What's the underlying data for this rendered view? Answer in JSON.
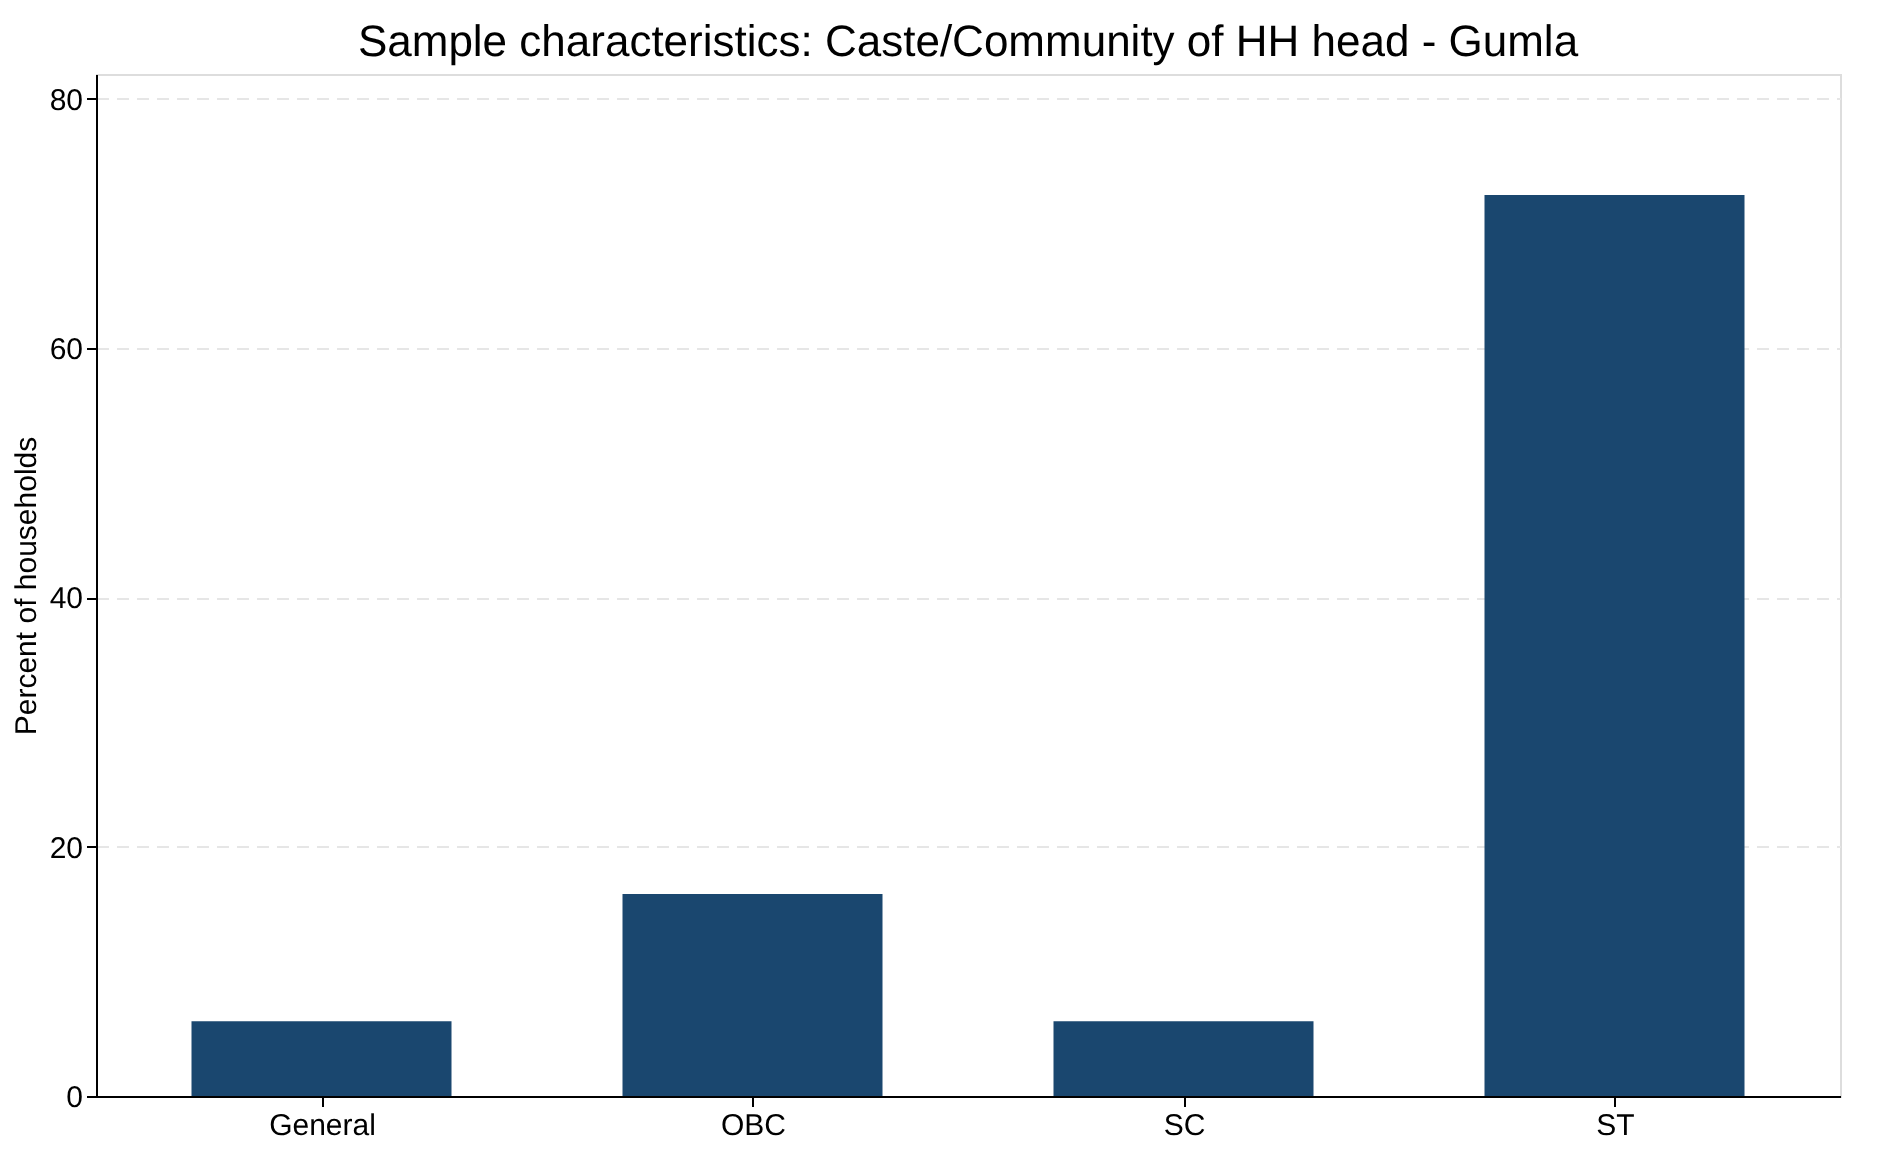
{
  "chart_data": {
    "type": "bar",
    "title": "Sample characteristics: Caste/Community of HH head - Gumla",
    "ylabel": "Percent of households",
    "categories": [
      "General",
      "OBC",
      "SC",
      "ST"
    ],
    "values": [
      6,
      16.2,
      6,
      72.3
    ],
    "color": "#1a476f",
    "ylim": [
      0,
      82
    ],
    "yticks": [
      0,
      20,
      40,
      60,
      80
    ],
    "grid": "y"
  }
}
